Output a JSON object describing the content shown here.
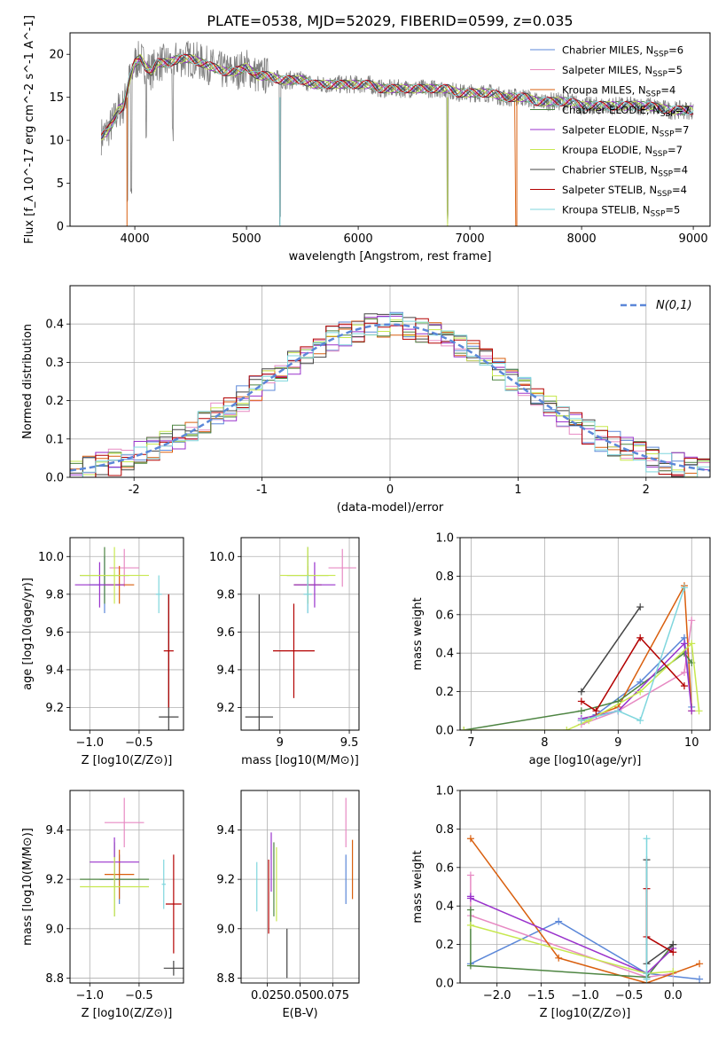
{
  "figure_title": "PLATE=0538, MJD=52029, FIBERID=0599, z=0.035",
  "series": [
    {
      "key": "chabrier_miles",
      "label": "Chabrier MILES",
      "nssp": "6",
      "color": "#5b87d8"
    },
    {
      "key": "salpeter_miles",
      "label": "Salpeter MILES",
      "nssp": "5",
      "color": "#e78ac3"
    },
    {
      "key": "kroupa_miles",
      "label": "Kroupa MILES",
      "nssp": "4",
      "color": "#d95f0e"
    },
    {
      "key": "chabrier_elodie",
      "label": "Chabrier ELODIE",
      "nssp": "7",
      "color": "#4e8542"
    },
    {
      "key": "salpeter_elodie",
      "label": "Salpeter ELODIE",
      "nssp": "7",
      "color": "#9932cc"
    },
    {
      "key": "kroupa_elodie",
      "label": "Kroupa ELODIE",
      "nssp": "7",
      "color": "#c7e84f"
    },
    {
      "key": "chabrier_stelib",
      "label": "Chabrier STELIB",
      "nssp": "4",
      "color": "#444444"
    },
    {
      "key": "salpeter_stelib",
      "label": "Salpeter STELIB",
      "nssp": "4",
      "color": "#b30000"
    },
    {
      "key": "kroupa_stelib",
      "label": "Kroupa STELIB",
      "nssp": "5",
      "color": "#7fd6dd"
    }
  ],
  "chart_data": [
    {
      "id": "spectrum",
      "type": "line",
      "xlabel": "wavelength [Angstrom, rest frame]",
      "ylabel": "Flux [f_λ 10^-17 erg cm^-2 s^-1 A^-1]",
      "xlim": [
        3420,
        9150
      ],
      "ylim": [
        0,
        22.5
      ],
      "xticks": [
        4000,
        5000,
        6000,
        7000,
        8000,
        9000
      ],
      "yticks": [
        0,
        5,
        10,
        15,
        20
      ],
      "legend": "top-right",
      "grid": false,
      "data_range": [
        3700,
        9000
      ],
      "data": {
        "x": [
          3700,
          3750,
          3800,
          3850,
          3900,
          3950,
          4000,
          4050,
          4100,
          4150,
          4200,
          4300,
          4400,
          4500,
          4600,
          4700,
          4800,
          4900,
          5000,
          5100,
          5200,
          5300,
          5400,
          5500,
          5600,
          5700,
          5800,
          5900,
          6000,
          6100,
          6200,
          6300,
          6400,
          6500,
          6600,
          6700,
          6800,
          6900,
          7000,
          7100,
          7200,
          7300,
          7400,
          7500,
          7600,
          7700,
          7800,
          7900,
          8000,
          8200,
          8400,
          8600,
          8800,
          9000
        ],
        "y": [
          10.5,
          11.0,
          12.0,
          13.5,
          14.0,
          17.0,
          19.0,
          19.5,
          18.5,
          18.0,
          19.0,
          19.0,
          19.5,
          19.5,
          19.0,
          18.5,
          18.0,
          18.0,
          18.5,
          17.5,
          17.5,
          17.0,
          17.0,
          17.0,
          16.5,
          16.5,
          16.5,
          16.5,
          16.5,
          16.5,
          16.0,
          16.0,
          16.0,
          16.0,
          16.0,
          16.0,
          16.0,
          15.5,
          15.5,
          15.5,
          15.5,
          15.0,
          15.0,
          15.0,
          14.5,
          14.5,
          14.5,
          14.5,
          14.0,
          14.0,
          14.0,
          14.0,
          13.5,
          13.5
        ]
      },
      "dips": [
        {
          "x": 3934,
          "y": 2.0
        },
        {
          "x": 3969,
          "y": 3.0
        },
        {
          "x": 4102,
          "y": 9.0
        },
        {
          "x": 4341,
          "y": 9.5
        },
        {
          "x": 5300,
          "y": 0
        },
        {
          "x": 6800,
          "y": 0
        }
      ]
    },
    {
      "id": "residuals",
      "type": "line",
      "xlabel": "(data-model)/error",
      "ylabel": "Normed distribution",
      "xlim": [
        -2.5,
        2.5
      ],
      "ylim": [
        0,
        0.5
      ],
      "xticks": [
        -2,
        -1,
        0,
        1,
        2
      ],
      "yticks": [
        0.0,
        0.1,
        0.2,
        0.3,
        0.4
      ],
      "grid": true,
      "legend": "top-right",
      "normal_label": "N(0,1)",
      "normal_color": "#5b87d8",
      "bin_width": 0.1
    },
    {
      "id": "age_vs_Z",
      "type": "scatter",
      "xlabel": "Z [log10(Z/Z⊙)]",
      "ylabel": "age [log10(age/yr)]",
      "xlim": [
        -1.2,
        -0.05
      ],
      "ylim": [
        9.08,
        10.1
      ],
      "xticks": [
        -1.0,
        -0.5
      ],
      "xticklabels": [
        "−1.0",
        "−0.5"
      ],
      "yticks": [
        9.2,
        9.4,
        9.6,
        9.8,
        10.0
      ],
      "grid": true,
      "points": [
        {
          "s": "chabrier_miles",
          "x": -0.85,
          "y": 9.85,
          "xe": 0.15,
          "ye": 0.15
        },
        {
          "s": "salpeter_miles",
          "x": -0.65,
          "y": 9.94,
          "xe": 0.15,
          "ye": 0.1
        },
        {
          "s": "kroupa_miles",
          "x": -0.7,
          "y": 9.85,
          "xe": 0.15,
          "ye": 0.1
        },
        {
          "s": "chabrier_elodie",
          "x": -0.85,
          "y": 9.9,
          "xe": 0.25,
          "ye": 0.15
        },
        {
          "s": "salpeter_elodie",
          "x": -0.9,
          "y": 9.85,
          "xe": 0.25,
          "ye": 0.12
        },
        {
          "s": "kroupa_elodie",
          "x": -0.75,
          "y": 9.9,
          "xe": 0.35,
          "ye": 0.15
        },
        {
          "s": "chabrier_stelib",
          "x": -0.2,
          "y": 9.15,
          "xe": 0.1,
          "ye": 0.65
        },
        {
          "s": "salpeter_stelib",
          "x": -0.2,
          "y": 9.5,
          "xe": 0.05,
          "ye": 0.3
        },
        {
          "s": "kroupa_stelib",
          "x": -0.3,
          "y": 9.8,
          "xe": 0.03,
          "ye": 0.1
        }
      ]
    },
    {
      "id": "age_vs_mass",
      "type": "scatter",
      "xlabel": "mass [log10(M/M⊙)]",
      "ylabel": "",
      "xlim": [
        8.72,
        9.57
      ],
      "ylim": [
        9.08,
        10.1
      ],
      "xticks": [
        9.0,
        9.5
      ],
      "yticks": [
        9.2,
        9.4,
        9.6,
        9.8,
        10.0
      ],
      "grid": true,
      "points": [
        {
          "s": "chabrier_miles",
          "x": 9.2,
          "y": 9.85,
          "xe": 0.1,
          "ye": 0.15
        },
        {
          "s": "salpeter_miles",
          "x": 9.45,
          "y": 9.94,
          "xe": 0.1,
          "ye": 0.1
        },
        {
          "s": "kroupa_miles",
          "x": 9.2,
          "y": 9.85,
          "xe": 0.1,
          "ye": 0.1
        },
        {
          "s": "chabrier_elodie",
          "x": 9.2,
          "y": 9.9,
          "xe": 0.15,
          "ye": 0.15
        },
        {
          "s": "salpeter_elodie",
          "x": 9.25,
          "y": 9.85,
          "xe": 0.15,
          "ye": 0.12
        },
        {
          "s": "kroupa_elodie",
          "x": 9.2,
          "y": 9.9,
          "xe": 0.2,
          "ye": 0.15
        },
        {
          "s": "chabrier_stelib",
          "x": 8.85,
          "y": 9.15,
          "xe": 0.1,
          "ye": 0.65
        },
        {
          "s": "salpeter_stelib",
          "x": 9.1,
          "y": 9.5,
          "xe": 0.15,
          "ye": 0.25
        },
        {
          "s": "kroupa_stelib",
          "x": 9.2,
          "y": 9.8,
          "xe": 0.03,
          "ye": 0.1
        }
      ]
    },
    {
      "id": "weight_vs_age",
      "type": "line",
      "xlabel": "age [log10(age/yr)]",
      "ylabel": "mass weight",
      "xlim": [
        6.85,
        10.25
      ],
      "ylim": [
        0,
        1
      ],
      "xticks": [
        7,
        8,
        9,
        10
      ],
      "yticks": [
        0.0,
        0.2,
        0.4,
        0.6,
        0.8,
        1.0
      ],
      "grid": true,
      "lines": [
        {
          "s": "chabrier_miles",
          "x": [
            8.5,
            8.7,
            9.3,
            9.9,
            10.0
          ],
          "y": [
            0.05,
            0.08,
            0.25,
            0.48,
            0.12
          ]
        },
        {
          "s": "salpeter_miles",
          "x": [
            8.5,
            9.0,
            9.9,
            10.0
          ],
          "y": [
            0.03,
            0.1,
            0.3,
            0.57
          ]
        },
        {
          "s": "kroupa_miles",
          "x": [
            8.5,
            9.0,
            9.9,
            10.0
          ],
          "y": [
            0.05,
            0.12,
            0.75,
            0.1
          ]
        },
        {
          "s": "chabrier_elodie",
          "x": [
            6.9,
            8.5,
            9.0,
            9.9,
            10.0
          ],
          "y": [
            0.0,
            0.1,
            0.15,
            0.4,
            0.35
          ]
        },
        {
          "s": "salpeter_elodie",
          "x": [
            8.5,
            9.0,
            9.9,
            10.0
          ],
          "y": [
            0.06,
            0.1,
            0.45,
            0.1
          ]
        },
        {
          "s": "kroupa_elodie",
          "x": [
            6.9,
            8.3,
            8.6,
            9.3,
            10.0,
            10.1
          ],
          "y": [
            0.0,
            0.0,
            0.05,
            0.2,
            0.45,
            0.1
          ]
        },
        {
          "s": "chabrier_stelib",
          "x": [
            8.5,
            9.3
          ],
          "y": [
            0.2,
            0.64
          ]
        },
        {
          "s": "salpeter_stelib",
          "x": [
            8.5,
            8.7,
            9.3,
            9.9
          ],
          "y": [
            0.15,
            0.1,
            0.48,
            0.23
          ]
        },
        {
          "s": "kroupa_stelib",
          "x": [
            8.5,
            9.0,
            9.3,
            9.9
          ],
          "y": [
            0.05,
            0.1,
            0.05,
            0.74
          ]
        }
      ]
    },
    {
      "id": "mass_vs_Z",
      "type": "scatter",
      "xlabel": "Z [log10(Z/Z⊙)]",
      "ylabel": "mass [log10(M/M⊙)]",
      "xlim": [
        -1.2,
        -0.05
      ],
      "ylim": [
        8.78,
        9.56
      ],
      "xticks": [
        -1.0,
        -0.5
      ],
      "xticklabels": [
        "−1.0",
        "−0.5"
      ],
      "yticks": [
        8.8,
        9.0,
        9.2,
        9.4
      ],
      "grid": true,
      "points": [
        {
          "s": "chabrier_miles",
          "x": -0.7,
          "y": 9.2,
          "xe": 0.2,
          "ye": 0.1
        },
        {
          "s": "salpeter_miles",
          "x": -0.65,
          "y": 9.43,
          "xe": 0.2,
          "ye": 0.1
        },
        {
          "s": "kroupa_miles",
          "x": -0.7,
          "y": 9.22,
          "xe": 0.15,
          "ye": 0.1
        },
        {
          "s": "chabrier_elodie",
          "x": -0.75,
          "y": 9.2,
          "xe": 0.35,
          "ye": 0.15
        },
        {
          "s": "salpeter_elodie",
          "x": -0.75,
          "y": 9.27,
          "xe": 0.25,
          "ye": 0.1
        },
        {
          "s": "kroupa_elodie",
          "x": -0.75,
          "y": 9.17,
          "xe": 0.35,
          "ye": 0.12
        },
        {
          "s": "chabrier_stelib",
          "x": -0.15,
          "y": 8.84,
          "xe": 0.1,
          "ye": 0.03
        },
        {
          "s": "salpeter_stelib",
          "x": -0.15,
          "y": 9.1,
          "xe": 0.08,
          "ye": 0.2
        },
        {
          "s": "kroupa_stelib",
          "x": -0.25,
          "y": 9.18,
          "xe": 0.02,
          "ye": 0.1
        }
      ]
    },
    {
      "id": "mass_vs_ebv",
      "type": "scatter",
      "xlabel": "E(B-V)",
      "ylabel": "",
      "xlim": [
        0.005,
        0.095
      ],
      "ylim": [
        8.78,
        9.56
      ],
      "xticks": [
        0.025,
        0.05,
        0.075
      ],
      "xticklabels": [
        "0.025",
        "0.050",
        "0.075"
      ],
      "xticklabel_joined": "0.0250.0500.075",
      "yticks": [
        8.8,
        9.0,
        9.2,
        9.4
      ],
      "grid": true,
      "points": [
        {
          "s": "chabrier_miles",
          "x": 0.085,
          "y": 9.2,
          "ye": 0.1
        },
        {
          "s": "salpeter_miles",
          "x": 0.085,
          "y": 9.43,
          "ye": 0.1
        },
        {
          "s": "kroupa_miles",
          "x": 0.09,
          "y": 9.24,
          "ye": 0.12
        },
        {
          "s": "chabrier_elodie",
          "x": 0.03,
          "y": 9.2,
          "ye": 0.15
        },
        {
          "s": "salpeter_elodie",
          "x": 0.028,
          "y": 9.27,
          "ye": 0.12
        },
        {
          "s": "kroupa_elodie",
          "x": 0.032,
          "y": 9.18,
          "ye": 0.15
        },
        {
          "s": "chabrier_stelib",
          "x": 0.04,
          "y": 8.9,
          "ye": 0.1
        },
        {
          "s": "salpeter_stelib",
          "x": 0.026,
          "y": 9.13,
          "ye": 0.15
        },
        {
          "s": "kroupa_stelib",
          "x": 0.017,
          "y": 9.17,
          "ye": 0.1
        }
      ]
    },
    {
      "id": "weight_vs_Z",
      "type": "line",
      "xlabel": "Z [log10(Z/Z⊙)]",
      "ylabel": "mass weight",
      "xlim": [
        -2.42,
        0.42
      ],
      "ylim": [
        0,
        1
      ],
      "xticks": [
        -2.0,
        -1.5,
        -1.0,
        -0.5,
        0.0
      ],
      "xticklabels": [
        "−2.0",
        "−1.5",
        "−1.0",
        "−0.5",
        "0.0"
      ],
      "yticks": [
        0.0,
        0.2,
        0.4,
        0.6,
        0.8,
        1.0
      ],
      "grid": true,
      "lines": [
        {
          "s": "chabrier_miles",
          "x": [
            -2.3,
            -1.3,
            -0.3,
            0.3
          ],
          "y": [
            0.1,
            0.32,
            0.05,
            0.02
          ]
        },
        {
          "s": "salpeter_miles",
          "x": [
            -2.3,
            -2.3,
            -0.3,
            0.0
          ],
          "y": [
            0.56,
            0.35,
            0.03,
            0.05
          ]
        },
        {
          "s": "kroupa_miles",
          "x": [
            -2.3,
            -1.3,
            -0.3,
            0.3
          ],
          "y": [
            0.75,
            0.13,
            0.0,
            0.1
          ]
        },
        {
          "s": "chabrier_elodie",
          "x": [
            -2.3,
            -2.3,
            -0.3,
            0.0
          ],
          "y": [
            0.38,
            0.09,
            0.03,
            0.2
          ]
        },
        {
          "s": "salpeter_elodie",
          "x": [
            -2.3,
            -2.3,
            -0.3,
            0.0
          ],
          "y": [
            0.45,
            0.44,
            0.05,
            0.18
          ]
        },
        {
          "s": "kroupa_elodie",
          "x": [
            -2.3,
            -0.3,
            0.0
          ],
          "y": [
            0.3,
            0.05,
            0.06
          ]
        },
        {
          "s": "chabrier_stelib",
          "x": [
            -0.3,
            -0.3,
            0.0
          ],
          "y": [
            0.64,
            0.1,
            0.2
          ]
        },
        {
          "s": "salpeter_stelib",
          "x": [
            -0.3,
            -0.3,
            0.0
          ],
          "y": [
            0.49,
            0.24,
            0.16
          ]
        },
        {
          "s": "kroupa_stelib",
          "x": [
            -0.3,
            -0.3,
            -0.3
          ],
          "y": [
            0.75,
            0.05,
            0.02
          ]
        }
      ]
    }
  ]
}
